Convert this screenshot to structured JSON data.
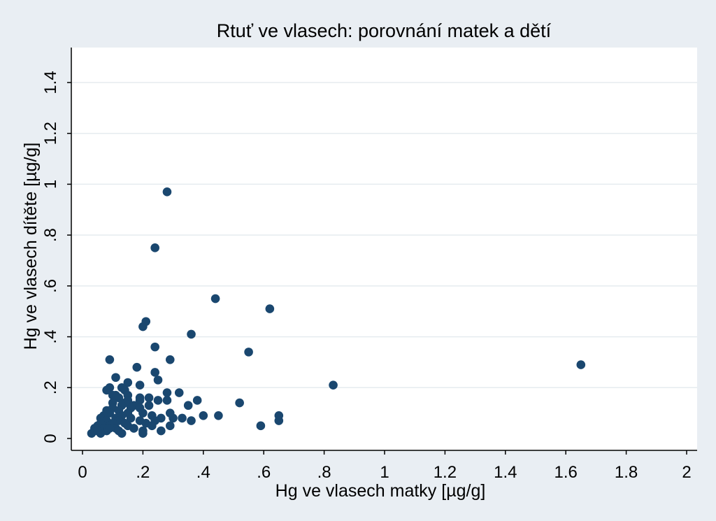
{
  "chart_data": {
    "type": "scatter",
    "title": "Rtuť ve vlasech: porovnání matek a dětí",
    "xlabel": "Hg ve vlasech matky  [µg/g]",
    "ylabel": "Hg ve vlasech dítěte [µg/g]",
    "xlim": [
      0,
      2
    ],
    "ylim": [
      0,
      1.5
    ],
    "xticks": [
      0,
      0.2,
      0.4,
      0.6,
      0.8,
      1,
      1.2,
      1.4,
      1.6,
      1.8,
      2
    ],
    "xtick_labels": [
      "0",
      ".2",
      ".4",
      ".6",
      ".8",
      "1",
      "1.2",
      "1.4",
      "1.6",
      "1.8",
      "2"
    ],
    "yticks": [
      0,
      0.2,
      0.4,
      0.6,
      0.8,
      1,
      1.2,
      1.4
    ],
    "ytick_labels": [
      "0",
      ".2",
      ".4",
      ".6",
      ".8",
      "1",
      "1.2",
      "1.4"
    ],
    "grid": true,
    "point_color": "#1a476f",
    "points": [
      [
        0.28,
        0.97
      ],
      [
        0.24,
        0.75
      ],
      [
        0.44,
        0.55
      ],
      [
        0.62,
        0.51
      ],
      [
        0.21,
        0.46
      ],
      [
        0.2,
        0.44
      ],
      [
        0.36,
        0.41
      ],
      [
        0.24,
        0.36
      ],
      [
        0.55,
        0.34
      ],
      [
        0.09,
        0.31
      ],
      [
        0.29,
        0.31
      ],
      [
        1.65,
        0.29
      ],
      [
        0.18,
        0.28
      ],
      [
        0.24,
        0.26
      ],
      [
        0.11,
        0.24
      ],
      [
        0.25,
        0.23
      ],
      [
        0.15,
        0.22
      ],
      [
        0.83,
        0.21
      ],
      [
        0.19,
        0.21
      ],
      [
        0.13,
        0.2
      ],
      [
        0.09,
        0.2
      ],
      [
        0.08,
        0.19
      ],
      [
        0.14,
        0.19
      ],
      [
        0.28,
        0.18
      ],
      [
        0.32,
        0.18
      ],
      [
        0.11,
        0.17
      ],
      [
        0.1,
        0.17
      ],
      [
        0.15,
        0.17
      ],
      [
        0.19,
        0.16
      ],
      [
        0.22,
        0.16
      ],
      [
        0.12,
        0.16
      ],
      [
        0.15,
        0.15
      ],
      [
        0.19,
        0.15
      ],
      [
        0.25,
        0.15
      ],
      [
        0.28,
        0.15
      ],
      [
        0.38,
        0.15
      ],
      [
        0.1,
        0.14
      ],
      [
        0.14,
        0.14
      ],
      [
        0.52,
        0.14
      ],
      [
        0.13,
        0.13
      ],
      [
        0.17,
        0.13
      ],
      [
        0.22,
        0.13
      ],
      [
        0.35,
        0.13
      ],
      [
        0.1,
        0.12
      ],
      [
        0.16,
        0.12
      ],
      [
        0.19,
        0.12
      ],
      [
        0.08,
        0.11
      ],
      [
        0.12,
        0.11
      ],
      [
        0.09,
        0.1
      ],
      [
        0.15,
        0.1
      ],
      [
        0.2,
        0.1
      ],
      [
        0.29,
        0.1
      ],
      [
        0.07,
        0.09
      ],
      [
        0.13,
        0.09
      ],
      [
        0.23,
        0.09
      ],
      [
        0.4,
        0.09
      ],
      [
        0.45,
        0.09
      ],
      [
        0.65,
        0.09
      ],
      [
        0.06,
        0.08
      ],
      [
        0.11,
        0.08
      ],
      [
        0.16,
        0.08
      ],
      [
        0.26,
        0.08
      ],
      [
        0.3,
        0.08
      ],
      [
        0.33,
        0.08
      ],
      [
        0.08,
        0.07
      ],
      [
        0.12,
        0.07
      ],
      [
        0.19,
        0.07
      ],
      [
        0.24,
        0.07
      ],
      [
        0.36,
        0.07
      ],
      [
        0.65,
        0.07
      ],
      [
        0.06,
        0.06
      ],
      [
        0.1,
        0.06
      ],
      [
        0.14,
        0.06
      ],
      [
        0.21,
        0.06
      ],
      [
        0.05,
        0.05
      ],
      [
        0.09,
        0.05
      ],
      [
        0.15,
        0.05
      ],
      [
        0.23,
        0.05
      ],
      [
        0.29,
        0.05
      ],
      [
        0.59,
        0.05
      ],
      [
        0.04,
        0.04
      ],
      [
        0.07,
        0.04
      ],
      [
        0.11,
        0.04
      ],
      [
        0.17,
        0.04
      ],
      [
        0.08,
        0.03
      ],
      [
        0.12,
        0.03
      ],
      [
        0.2,
        0.03
      ],
      [
        0.26,
        0.03
      ],
      [
        0.03,
        0.02
      ],
      [
        0.06,
        0.02
      ],
      [
        0.13,
        0.02
      ],
      [
        0.2,
        0.02
      ],
      [
        0.04,
        0.03
      ],
      [
        0.09,
        0.04
      ],
      [
        0.05,
        0.03
      ]
    ]
  }
}
